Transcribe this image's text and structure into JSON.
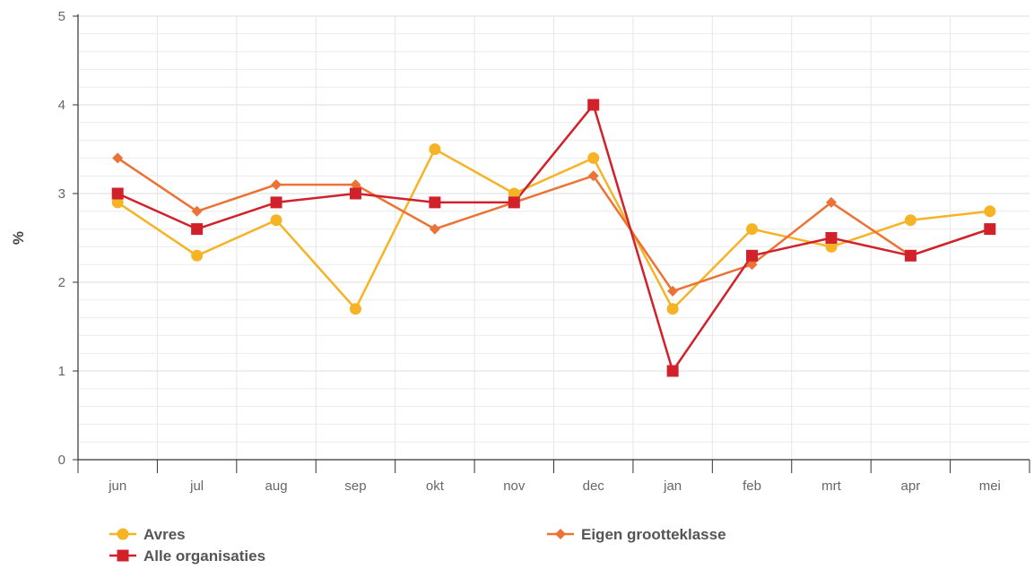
{
  "chart_data": {
    "type": "line",
    "ylabel": "%",
    "xlabel": "",
    "ylim": [
      0,
      5
    ],
    "yticks": [
      0,
      1,
      2,
      3,
      4,
      5
    ],
    "categories": [
      "jun",
      "jul",
      "aug",
      "sep",
      "okt",
      "nov",
      "dec",
      "jan",
      "feb",
      "mrt",
      "apr",
      "mei"
    ],
    "grid": true,
    "legend_position": "bottom",
    "series": [
      {
        "name": "Avres",
        "color": "#f5b325",
        "marker": "circle",
        "values": [
          2.9,
          2.3,
          2.7,
          1.7,
          3.5,
          3.0,
          3.4,
          1.7,
          2.6,
          2.4,
          2.7,
          2.8
        ]
      },
      {
        "name": "Eigen grootteklasse",
        "color": "#ec7235",
        "marker": "diamond",
        "values": [
          3.4,
          2.8,
          3.1,
          3.1,
          2.6,
          2.9,
          3.2,
          1.9,
          2.2,
          2.9,
          2.3,
          2.6
        ]
      },
      {
        "name": "Alle organisaties",
        "color": "#d1212b",
        "marker": "square",
        "values": [
          3.0,
          2.6,
          2.9,
          3.0,
          2.9,
          2.9,
          4.0,
          1.0,
          2.3,
          2.5,
          2.3,
          2.6
        ]
      }
    ]
  }
}
